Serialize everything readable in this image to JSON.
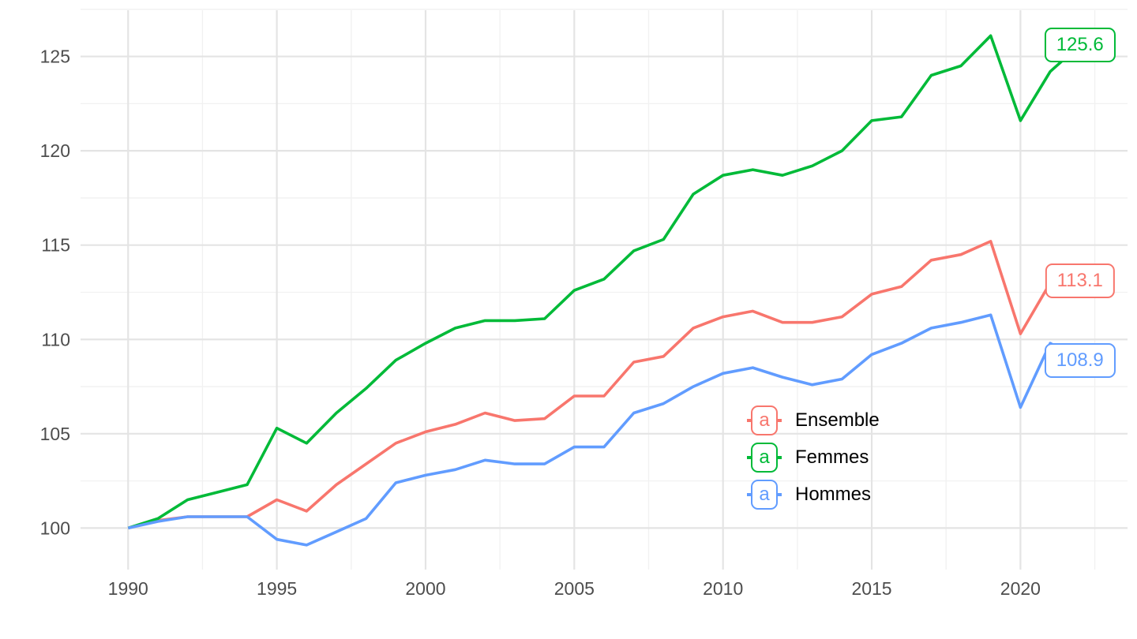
{
  "chart_data": {
    "type": "line",
    "title": "",
    "xlabel": "",
    "ylabel": "",
    "x": [
      1990,
      1991,
      1992,
      1993,
      1994,
      1995,
      1996,
      1997,
      1998,
      1999,
      2000,
      2001,
      2002,
      2003,
      2004,
      2005,
      2006,
      2007,
      2008,
      2009,
      2010,
      2011,
      2012,
      2013,
      2014,
      2015,
      2016,
      2017,
      2018,
      2019,
      2020,
      2021,
      2022
    ],
    "series": [
      {
        "name": "Ensemble",
        "color": "#F8766D",
        "end_label": "113.1",
        "values": [
          100,
          100.4,
          100.6,
          100.6,
          100.6,
          101.5,
          100.9,
          102.3,
          103.4,
          104.5,
          105.1,
          105.5,
          106.1,
          105.7,
          105.8,
          107.0,
          107.0,
          108.8,
          109.1,
          110.6,
          111.2,
          111.5,
          110.9,
          110.9,
          111.2,
          112.4,
          112.8,
          114.2,
          114.5,
          115.2,
          110.3,
          113.0,
          113.1
        ]
      },
      {
        "name": "Femmes",
        "color": "#00BA38",
        "end_label": "125.6",
        "values": [
          100,
          100.5,
          101.5,
          101.9,
          102.3,
          105.3,
          104.5,
          106.1,
          107.4,
          108.9,
          109.8,
          110.6,
          111.0,
          111.0,
          111.1,
          112.6,
          113.2,
          114.7,
          115.3,
          117.7,
          118.7,
          119.0,
          118.7,
          119.2,
          120.0,
          121.6,
          121.8,
          124.0,
          124.5,
          126.1,
          121.6,
          124.2,
          125.6
        ]
      },
      {
        "name": "Hommes",
        "color": "#619CFF",
        "end_label": "108.9",
        "values": [
          100,
          100.35,
          100.6,
          100.6,
          100.6,
          99.4,
          99.1,
          99.8,
          100.5,
          102.4,
          102.8,
          103.1,
          103.6,
          103.4,
          103.4,
          104.3,
          104.3,
          106.1,
          106.6,
          107.5,
          108.2,
          108.5,
          108.0,
          107.6,
          107.9,
          109.2,
          109.8,
          110.6,
          110.9,
          111.3,
          106.4,
          109.8,
          108.9
        ]
      }
    ],
    "x_ticks": [
      1990,
      1995,
      2000,
      2005,
      2010,
      2015,
      2020
    ],
    "y_ticks": [
      100,
      105,
      110,
      115,
      120,
      125
    ],
    "x_minor_ticks": [
      1992.5,
      1997.5,
      2002.5,
      2007.5,
      2012.5,
      2017.5,
      2022.5
    ],
    "y_minor_ticks": [
      102.5,
      107.5,
      112.5,
      117.5,
      122.5,
      127.5
    ],
    "xlim": [
      1988.4,
      2023.6
    ],
    "ylim": [
      97.8,
      127.45
    ],
    "grid": "major+minor",
    "legend_position": "inside-right",
    "legend": {
      "items": [
        {
          "key": "a",
          "label": "Ensemble",
          "color": "#F8766D"
        },
        {
          "key": "a",
          "label": "Femmes",
          "color": "#00BA38"
        },
        {
          "key": "a",
          "label": "Hommes",
          "color": "#619CFF"
        }
      ]
    }
  },
  "styles": {
    "background": "#FFFFFF",
    "grid_major": "#E4E4E4",
    "grid_minor": "#F1F1F1",
    "axis_text": "#4D4D4D",
    "legend_text": "#000000",
    "label_fill": "#FFFFFF"
  }
}
